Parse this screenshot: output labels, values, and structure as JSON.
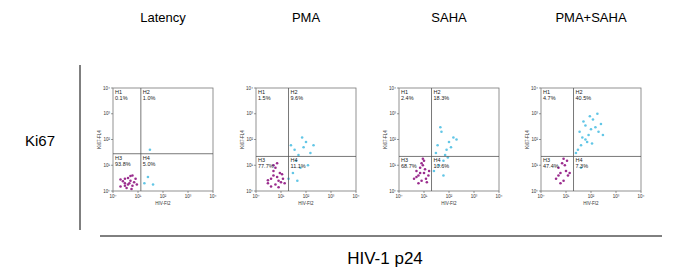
{
  "row_label": "Ki67",
  "figure_xlabel": "HIV-1 p24",
  "chart_data": [
    {
      "type": "scatter",
      "title": "Latency",
      "xlabel": "HIV-FI2",
      "ylabel": "Ki67-FL4",
      "log": true,
      "xlim": [
        1,
        10000
      ],
      "ylim": [
        1,
        10000
      ],
      "xticks": [
        {
          "value": 1,
          "label": "10⁰"
        },
        {
          "value": 10,
          "label": "10¹"
        },
        {
          "value": 100,
          "label": "10²"
        },
        {
          "value": 1000,
          "label": "10³"
        },
        {
          "value": 10000,
          "label": "10⁴"
        }
      ],
      "yticks": [
        {
          "value": 1,
          "label": "10⁰"
        },
        {
          "value": 10,
          "label": "10¹"
        },
        {
          "value": 100,
          "label": "10²"
        },
        {
          "value": 1000,
          "label": "10³"
        },
        {
          "value": 10000,
          "label": "10⁴"
        }
      ],
      "gates": {
        "x": 13,
        "y": 28
      },
      "quadrants": {
        "names": [
          "H1",
          "H2",
          "H3",
          "H4"
        ],
        "labels": [
          "0.1%",
          "1.0%",
          "93.8%",
          "5.0%"
        ]
      },
      "series": [
        {
          "color": "#9b2d8e",
          "x": [
            2,
            3,
            4,
            5,
            3,
            6,
            2.5,
            4,
            7,
            3.5,
            5,
            8,
            2,
            4.5,
            6,
            3,
            9,
            5.5
          ],
          "values": [
            1.5,
            2,
            1.8,
            2.5,
            3,
            1.6,
            2.4,
            3.2,
            2.2,
            1.3,
            3.8,
            3,
            2.8,
            2,
            4,
            1.6,
            1.8,
            1.2
          ]
        },
        {
          "color": "#62c6e6",
          "x": [
            18,
            25,
            40,
            30
          ],
          "values": [
            2,
            3.5,
            1.8,
            40
          ]
        }
      ]
    },
    {
      "type": "scatter",
      "title": "PMA",
      "xlabel": "HIV-FI2",
      "ylabel": "Ki67-FL4",
      "log": true,
      "xlim": [
        1,
        10000
      ],
      "ylim": [
        1,
        10000
      ],
      "xticks": [
        {
          "value": 1,
          "label": "10⁰"
        },
        {
          "value": 10,
          "label": "10¹"
        },
        {
          "value": 100,
          "label": "10²"
        },
        {
          "value": 1000,
          "label": "10³"
        },
        {
          "value": 10000,
          "label": "10⁴"
        }
      ],
      "yticks": [
        {
          "value": 1,
          "label": "10⁰"
        },
        {
          "value": 10,
          "label": "10¹"
        },
        {
          "value": 100,
          "label": "10²"
        },
        {
          "value": 1000,
          "label": "10³"
        },
        {
          "value": 10000,
          "label": "10⁴"
        }
      ],
      "gates": {
        "x": 20,
        "y": 22
      },
      "quadrants": {
        "names": [
          "H1",
          "H2",
          "H3",
          "H4"
        ],
        "labels": [
          "1.5%",
          "9.6%",
          "77.7%",
          "11.1%"
        ]
      },
      "series": [
        {
          "color": "#9b2d8e",
          "x": [
            3,
            4,
            6,
            8,
            5,
            10,
            4,
            7,
            12,
            5,
            9,
            6,
            3,
            8,
            11,
            14,
            5,
            7
          ],
          "values": [
            2,
            3,
            1.8,
            2.5,
            4,
            2.2,
            1.5,
            3.5,
            3,
            6,
            5,
            8,
            2.6,
            1.4,
            4.5,
            2,
            10,
            12
          ]
        },
        {
          "color": "#62c6e6",
          "x": [
            20,
            30,
            45,
            60,
            35,
            80,
            100,
            50,
            150,
            70,
            25,
            40,
            200,
            120
          ],
          "values": [
            3,
            5,
            2.5,
            8,
            40,
            50,
            80,
            25,
            30,
            120,
            60,
            15,
            60,
            10
          ]
        }
      ]
    },
    {
      "type": "scatter",
      "title": "SAHA",
      "xlabel": "HIV-FI2",
      "ylabel": "Ki67-FL4",
      "log": true,
      "xlim": [
        1,
        10000
      ],
      "ylim": [
        1,
        10000
      ],
      "xticks": [
        {
          "value": 1,
          "label": "10⁰"
        },
        {
          "value": 10,
          "label": "10¹"
        },
        {
          "value": 100,
          "label": "10²"
        },
        {
          "value": 1000,
          "label": "10³"
        },
        {
          "value": 10000,
          "label": "10⁴"
        }
      ],
      "yticks": [
        {
          "value": 1,
          "label": "10⁰"
        },
        {
          "value": 10,
          "label": "10¹"
        },
        {
          "value": 100,
          "label": "10²"
        },
        {
          "value": 1000,
          "label": "10³"
        },
        {
          "value": 10000,
          "label": "10⁴"
        }
      ],
      "gates": {
        "x": 20,
        "y": 22
      },
      "quadrants": {
        "names": [
          "H1",
          "H2",
          "H3",
          "H4"
        ],
        "labels": [
          "2.4%",
          "18.3%",
          "68.7%",
          "10.6%"
        ]
      },
      "series": [
        {
          "color": "#9b2d8e",
          "x": [
            4,
            6,
            8,
            10,
            5,
            12,
            7,
            9,
            15,
            6,
            11,
            8,
            5,
            13,
            10,
            7,
            16,
            9
          ],
          "values": [
            3,
            4,
            2.5,
            5,
            6,
            3,
            8,
            10,
            4,
            2,
            7,
            12,
            3.5,
            2.2,
            15,
            5,
            6,
            18
          ]
        },
        {
          "color": "#62c6e6",
          "x": [
            25,
            40,
            60,
            80,
            35,
            100,
            150,
            50,
            200,
            70,
            30,
            45,
            120,
            90,
            60
          ],
          "values": [
            6,
            10,
            15,
            40,
            60,
            80,
            120,
            200,
            100,
            25,
            30,
            300,
            50,
            20,
            4
          ]
        }
      ]
    },
    {
      "type": "scatter",
      "title": "PMA+SAHA",
      "xlabel": "HIV-FI2",
      "ylabel": "Ki67-FL4",
      "log": true,
      "xlim": [
        1,
        10000
      ],
      "ylim": [
        1,
        10000
      ],
      "xticks": [
        {
          "value": 1,
          "label": "10⁰"
        },
        {
          "value": 10,
          "label": "10¹"
        },
        {
          "value": 100,
          "label": "10²"
        },
        {
          "value": 1000,
          "label": "10³"
        },
        {
          "value": 10000,
          "label": "10⁴"
        }
      ],
      "yticks": [
        {
          "value": 1,
          "label": "10⁰"
        },
        {
          "value": 10,
          "label": "10¹"
        },
        {
          "value": 100,
          "label": "10²"
        },
        {
          "value": 1000,
          "label": "10³"
        },
        {
          "value": 10000,
          "label": "10⁴"
        }
      ],
      "gates": {
        "x": 20,
        "y": 22
      },
      "quadrants": {
        "names": [
          "H1",
          "H2",
          "H3",
          "H4"
        ],
        "labels": [
          "4.7%",
          "40.5%",
          "47.4%",
          "7.3%"
        ]
      },
      "series": [
        {
          "color": "#9b2d8e",
          "x": [
            4,
            6,
            8,
            10,
            5,
            12,
            7,
            9,
            14,
            6,
            11,
            8,
            5
          ],
          "values": [
            3,
            5,
            2.5,
            6,
            8,
            4,
            12,
            10,
            5,
            2,
            15,
            18,
            4
          ]
        },
        {
          "color": "#62c6e6",
          "x": [
            25,
            40,
            60,
            80,
            35,
            100,
            150,
            50,
            200,
            70,
            30,
            45,
            120,
            90,
            60,
            250,
            180,
            110,
            300,
            40
          ],
          "values": [
            30,
            60,
            100,
            150,
            200,
            250,
            300,
            500,
            200,
            80,
            40,
            120,
            600,
            800,
            350,
            400,
            1000,
            70,
            150,
            8
          ]
        }
      ]
    }
  ]
}
